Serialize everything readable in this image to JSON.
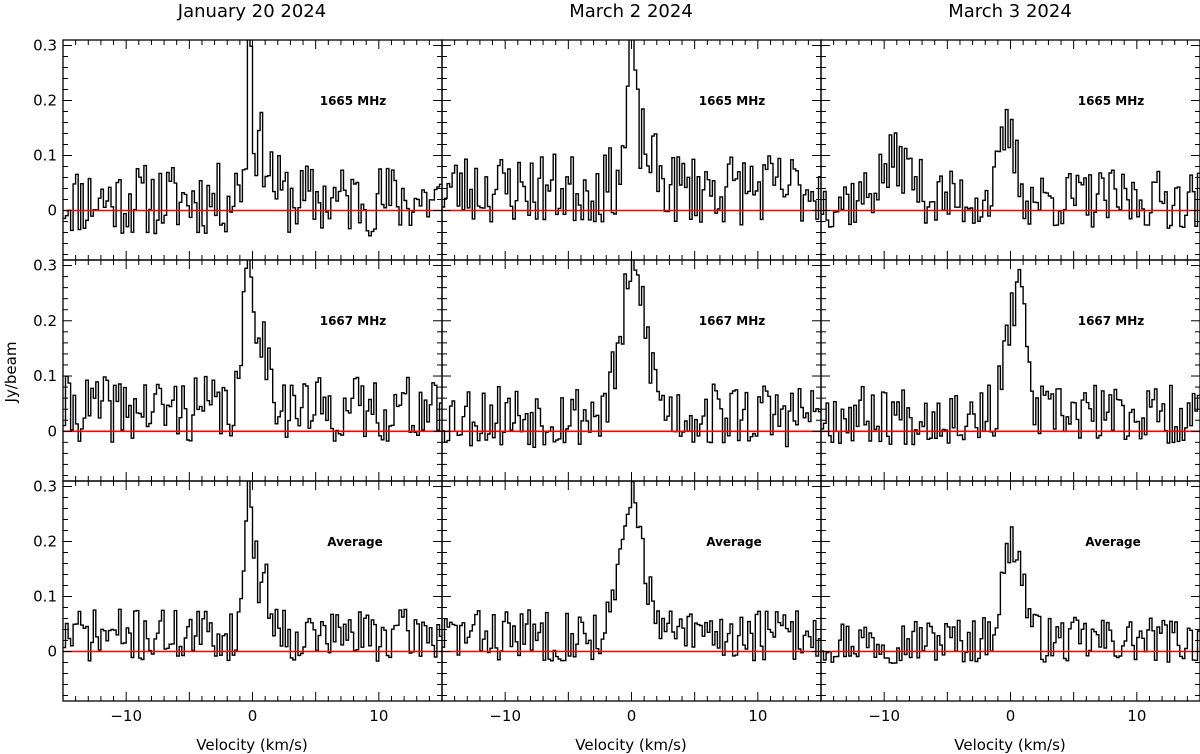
{
  "figure": {
    "ylabel": "Jy/beam",
    "xlabel": "Velocity (km/s)",
    "columns": [
      "January 20 2024",
      "March 2 2024",
      "March 3 2024"
    ],
    "rows": [
      "1665 MHz",
      "1667 MHz",
      "Average"
    ],
    "xlim": [
      -15,
      15
    ],
    "ylim": [
      -0.09,
      0.31
    ],
    "xtick_labels": [
      "-10",
      "0",
      "10"
    ],
    "ytick_labels": [
      "0",
      "0.1",
      "0.2",
      "0.3"
    ],
    "zero_line_color": "#ff0000",
    "trace_color": "#000000"
  },
  "chart_data": {
    "type": "line",
    "style": "step",
    "channel_width_kms": 0.2,
    "v_start_kms": -15.0,
    "xlim": [
      -15,
      15
    ],
    "ylim": [
      -0.09,
      0.31
    ],
    "columns": [
      "January 20 2024",
      "March 2 2024",
      "March 3 2024"
    ],
    "rows": [
      "1665 MHz",
      "1667 MHz",
      "Average"
    ],
    "panels": [
      {
        "col": 0,
        "row": 0,
        "label": "1665 MHz",
        "components": [
          [
            0.26,
            -0.2,
            0.15
          ],
          [
            0.1,
            0.4,
            0.9
          ]
        ],
        "seed": 11,
        "noise": 0.055,
        "baseline": 0.02
      },
      {
        "col": 1,
        "row": 0,
        "label": "1665 MHz",
        "components": [
          [
            0.22,
            0.0,
            0.25
          ],
          [
            0.09,
            0.5,
            1.0
          ]
        ],
        "seed": 23,
        "noise": 0.055,
        "baseline": 0.04
      },
      {
        "col": 2,
        "row": 0,
        "label": "1665 MHz",
        "components": [
          [
            0.12,
            -0.2,
            0.6
          ],
          [
            0.07,
            -9.0,
            1.2
          ]
        ],
        "seed": 37,
        "noise": 0.045,
        "baseline": 0.02
      },
      {
        "col": 0,
        "row": 1,
        "label": "1667 MHz",
        "components": [
          [
            0.2,
            -0.3,
            0.4
          ],
          [
            0.12,
            0.6,
            0.8
          ]
        ],
        "seed": 41,
        "noise": 0.05,
        "baseline": 0.04
      },
      {
        "col": 1,
        "row": 1,
        "label": "1667 MHz",
        "components": [
          [
            0.25,
            0.2,
            1.0
          ]
        ],
        "seed": 53,
        "noise": 0.05,
        "baseline": 0.03
      },
      {
        "col": 2,
        "row": 1,
        "label": "1667 MHz",
        "components": [
          [
            0.2,
            0.4,
            0.7
          ],
          [
            0.1,
            0.8,
            0.2
          ]
        ],
        "seed": 67,
        "noise": 0.045,
        "baseline": 0.03
      },
      {
        "col": 0,
        "row": 2,
        "label": "Average",
        "components": [
          [
            0.23,
            -0.3,
            0.3
          ],
          [
            0.1,
            0.6,
            0.8
          ]
        ],
        "seed": 71,
        "noise": 0.04,
        "baseline": 0.03
      },
      {
        "col": 1,
        "row": 2,
        "label": "Average",
        "components": [
          [
            0.24,
            0.1,
            0.9
          ]
        ],
        "seed": 83,
        "noise": 0.04,
        "baseline": 0.03
      },
      {
        "col": 2,
        "row": 2,
        "label": "Average",
        "components": [
          [
            0.18,
            0.2,
            0.8
          ]
        ],
        "seed": 97,
        "noise": 0.035,
        "baseline": 0.02
      }
    ]
  }
}
